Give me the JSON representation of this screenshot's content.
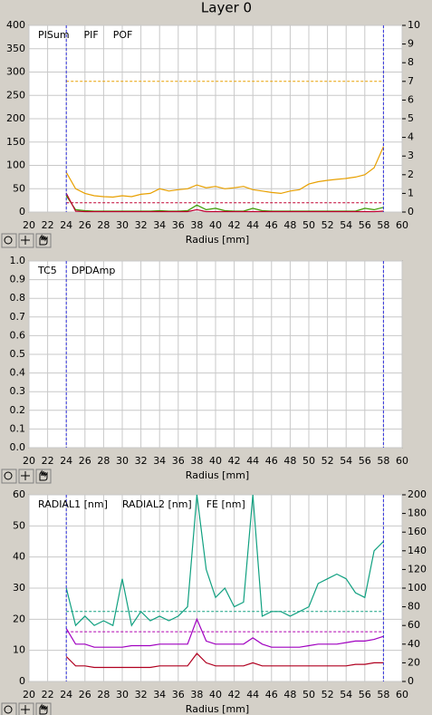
{
  "header": {
    "title": "Layer 0"
  },
  "chart_data": [
    {
      "type": "line",
      "xlabel": "Radius [mm]",
      "x": [
        24,
        25,
        26,
        27,
        28,
        29,
        30,
        31,
        32,
        33,
        34,
        35,
        36,
        37,
        38,
        39,
        40,
        41,
        42,
        43,
        44,
        45,
        46,
        47,
        48,
        49,
        50,
        51,
        52,
        53,
        54,
        55,
        56,
        57,
        58
      ],
      "xlim": [
        20,
        60
      ],
      "xticks": [
        20,
        22,
        24,
        26,
        28,
        30,
        32,
        34,
        36,
        38,
        40,
        42,
        44,
        46,
        48,
        50,
        52,
        54,
        56,
        58,
        60
      ],
      "ylim": [
        0,
        400
      ],
      "yticks": [
        0,
        50,
        100,
        150,
        200,
        250,
        300,
        350,
        400
      ],
      "y2lim": [
        0,
        10
      ],
      "y2ticks": [
        0,
        1,
        2,
        3,
        4,
        5,
        6,
        7,
        8,
        9,
        10
      ],
      "grid": true,
      "legend": "top-left",
      "vlines": [
        24,
        58
      ],
      "vline_color": "#3030e0",
      "thresholds": [
        {
          "value": 280,
          "color": "#e8a000"
        },
        {
          "value": 20,
          "color": "#c00030"
        }
      ],
      "series": [
        {
          "name": "PISum",
          "color": "#e8a000",
          "values": [
            85,
            50,
            40,
            35,
            33,
            32,
            35,
            33,
            38,
            40,
            50,
            45,
            48,
            50,
            58,
            52,
            55,
            50,
            52,
            55,
            48,
            45,
            42,
            40,
            45,
            48,
            60,
            65,
            68,
            70,
            72,
            75,
            80,
            95,
            140
          ]
        },
        {
          "name": "PIF",
          "color": "#3a9a00",
          "values": [
            35,
            5,
            3,
            2,
            2,
            2,
            2,
            2,
            2,
            2,
            3,
            2,
            2,
            3,
            15,
            5,
            8,
            3,
            2,
            2,
            8,
            3,
            2,
            2,
            2,
            2,
            2,
            2,
            2,
            2,
            2,
            2,
            8,
            5,
            10
          ]
        },
        {
          "name": "POF",
          "color": "#c00030",
          "values": [
            40,
            2,
            1,
            1,
            1,
            1,
            1,
            1,
            1,
            1,
            1,
            1,
            1,
            1,
            5,
            1,
            1,
            1,
            1,
            1,
            1,
            1,
            1,
            1,
            1,
            1,
            1,
            1,
            1,
            1,
            1,
            1,
            1,
            1,
            2
          ]
        }
      ]
    },
    {
      "type": "line",
      "xlabel": "Radius [mm]",
      "xlim": [
        20,
        60
      ],
      "xticks": [
        20,
        22,
        24,
        26,
        28,
        30,
        32,
        34,
        36,
        38,
        40,
        42,
        44,
        46,
        48,
        50,
        52,
        54,
        56,
        58,
        60
      ],
      "ylim": [
        0,
        1
      ],
      "yticks": [
        {
          "value": 0,
          "label": "0.0"
        },
        0.1,
        0.2,
        0.3,
        0.4,
        0.5,
        0.6,
        0.7,
        0.8,
        0.9,
        {
          "value": 1,
          "label": "1.0"
        }
      ],
      "grid": true,
      "legend": "top-left",
      "vlines": [
        24,
        58
      ],
      "vline_color": "#3030e0",
      "series": [
        {
          "name": "TC5",
          "color": "#3a7a00"
        },
        {
          "name": "DPDAmp",
          "color": "#c00030"
        }
      ]
    },
    {
      "type": "line",
      "xlabel": "Radius [mm]",
      "x": [
        24,
        25,
        26,
        27,
        28,
        29,
        30,
        31,
        32,
        33,
        34,
        35,
        36,
        37,
        38,
        39,
        40,
        41,
        42,
        43,
        44,
        45,
        46,
        47,
        48,
        49,
        50,
        51,
        52,
        53,
        54,
        55,
        56,
        57,
        58
      ],
      "xlim": [
        20,
        60
      ],
      "xticks": [
        20,
        22,
        24,
        26,
        28,
        30,
        32,
        34,
        36,
        38,
        40,
        42,
        44,
        46,
        48,
        50,
        52,
        54,
        56,
        58,
        60
      ],
      "ylim": [
        0,
        60
      ],
      "yticks": [
        0,
        10,
        20,
        30,
        40,
        50,
        60
      ],
      "y2lim": [
        0,
        200
      ],
      "y2ticks": [
        0,
        20,
        40,
        60,
        80,
        100,
        120,
        140,
        160,
        180,
        200
      ],
      "grid": true,
      "legend": "top-left",
      "vlines": [
        24,
        58
      ],
      "vline_color": "#3030e0",
      "thresholds": [
        {
          "value": 75,
          "color": "#10a080",
          "axis": "y2"
        },
        {
          "value": 16,
          "color": "#b000b0"
        }
      ],
      "series": [
        {
          "name": "RADIAL1 [nm]",
          "color": "#a000c0",
          "values": [
            17,
            12,
            12,
            11,
            11,
            11,
            11,
            11.5,
            11.5,
            11.5,
            12,
            12,
            12,
            12,
            20,
            13,
            12,
            12,
            12,
            12,
            14,
            12,
            11,
            11,
            11,
            11,
            11.5,
            12,
            12,
            12,
            12.5,
            13,
            13,
            13.5,
            14.5
          ]
        },
        {
          "name": "RADIAL2 [nm]",
          "color": "#b00020",
          "values": [
            8,
            5,
            5,
            4.5,
            4.5,
            4.5,
            4.5,
            4.5,
            4.5,
            4.5,
            5,
            5,
            5,
            5,
            9,
            6,
            5,
            5,
            5,
            5,
            6,
            5,
            5,
            5,
            5,
            5,
            5,
            5,
            5,
            5,
            5,
            5.5,
            5.5,
            6,
            6
          ]
        },
        {
          "name": "FE [nm]",
          "color": "#10a080",
          "axis": "y2",
          "values": [
            100,
            60,
            70,
            60,
            65,
            60,
            110,
            60,
            75,
            65,
            70,
            65,
            70,
            80,
            200,
            120,
            90,
            100,
            80,
            85,
            200,
            70,
            75,
            75,
            70,
            75,
            80,
            105,
            110,
            115,
            110,
            95,
            90,
            140,
            150
          ]
        }
      ]
    }
  ]
}
